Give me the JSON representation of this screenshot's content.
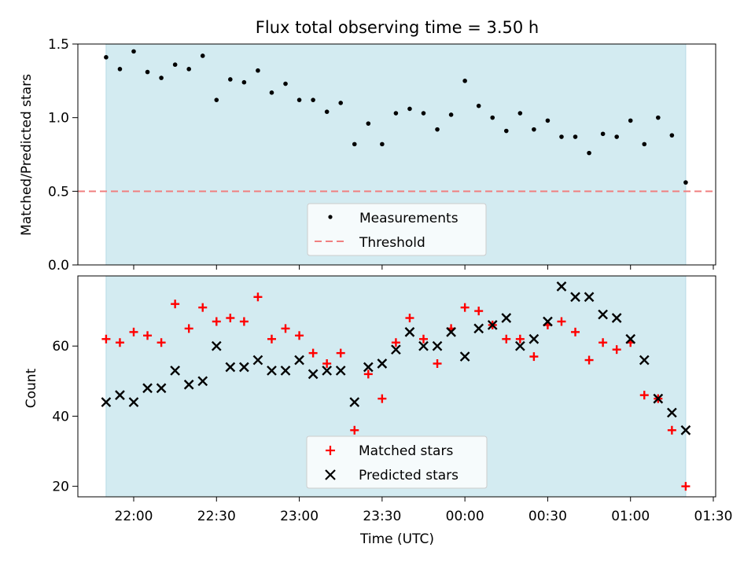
{
  "chart_data": [
    {
      "type": "scatter",
      "title": "Flux total observing time = 3.50 h",
      "ylabel": "Matched/Predicted stars",
      "xlabel": "",
      "ylim": [
        0,
        1.5
      ],
      "yticks": [
        "0.0",
        "0.5",
        "1.0",
        "1.5"
      ],
      "shaded_region": {
        "x_start": "21:50",
        "x_end": "01:20",
        "color": "#d3ebf1"
      },
      "threshold": {
        "name": "Threshold",
        "value": 0.5,
        "color": "#f08080",
        "style": "dashed"
      },
      "legend": {
        "placement": "lower-center",
        "entries": [
          "Measurements",
          "Threshold"
        ]
      },
      "series": [
        {
          "name": "Measurements",
          "marker": "dot",
          "color": "#000000",
          "x": [
            "21:50",
            "21:55",
            "22:00",
            "22:05",
            "22:10",
            "22:15",
            "22:20",
            "22:25",
            "22:30",
            "22:35",
            "22:40",
            "22:45",
            "22:50",
            "22:55",
            "23:00",
            "23:05",
            "23:10",
            "23:15",
            "23:20",
            "23:25",
            "23:30",
            "23:35",
            "23:40",
            "23:45",
            "23:50",
            "23:55",
            "00:00",
            "00:05",
            "00:10",
            "00:15",
            "00:20",
            "00:25",
            "00:30",
            "00:35",
            "00:40",
            "00:45",
            "00:50",
            "00:55",
            "01:00",
            "01:05",
            "01:10",
            "01:15",
            "01:20"
          ],
          "values": [
            1.41,
            1.33,
            1.45,
            1.31,
            1.27,
            1.36,
            1.33,
            1.42,
            1.12,
            1.26,
            1.24,
            1.32,
            1.17,
            1.23,
            1.12,
            1.12,
            1.04,
            1.1,
            0.82,
            0.96,
            0.82,
            1.03,
            1.06,
            1.03,
            0.92,
            1.02,
            1.25,
            1.08,
            1.0,
            0.91,
            1.03,
            0.92,
            0.98,
            0.87,
            0.87,
            0.76,
            0.89,
            0.87,
            0.98,
            0.82,
            1.0,
            0.88,
            0.56
          ]
        }
      ]
    },
    {
      "type": "scatter",
      "title": "",
      "ylabel": "Count",
      "xlabel": "Time (UTC)",
      "ylim": [
        17,
        80
      ],
      "yticks": [
        "20",
        "40",
        "60"
      ],
      "xticks": [
        "22:00",
        "22:30",
        "23:00",
        "23:30",
        "00:00",
        "00:30",
        "01:00",
        "01:30"
      ],
      "shaded_region": {
        "x_start": "21:50",
        "x_end": "01:20",
        "color": "#d3ebf1"
      },
      "legend": {
        "placement": "lower-center",
        "entries": [
          "Matched stars",
          "Predicted stars"
        ]
      },
      "series": [
        {
          "name": "Matched stars",
          "marker": "plus",
          "color": "#ff0000",
          "x": [
            "21:50",
            "21:55",
            "22:00",
            "22:05",
            "22:10",
            "22:15",
            "22:20",
            "22:25",
            "22:30",
            "22:35",
            "22:40",
            "22:45",
            "22:50",
            "22:55",
            "23:00",
            "23:05",
            "23:10",
            "23:15",
            "23:20",
            "23:25",
            "23:30",
            "23:35",
            "23:40",
            "23:45",
            "23:50",
            "23:55",
            "00:00",
            "00:05",
            "00:10",
            "00:15",
            "00:20",
            "00:25",
            "00:30",
            "00:35",
            "00:40",
            "00:45",
            "00:50",
            "00:55",
            "01:00",
            "01:05",
            "01:10",
            "01:15",
            "01:20"
          ],
          "values": [
            62,
            61,
            64,
            63,
            61,
            72,
            65,
            71,
            67,
            68,
            67,
            74,
            62,
            65,
            63,
            58,
            55,
            58,
            36,
            52,
            45,
            61,
            68,
            62,
            55,
            65,
            71,
            70,
            66,
            62,
            62,
            57,
            66,
            67,
            64,
            56,
            61,
            59,
            61,
            46,
            45,
            36,
            20
          ]
        },
        {
          "name": "Predicted stars",
          "marker": "x",
          "color": "#000000",
          "x": [
            "21:50",
            "21:55",
            "22:00",
            "22:05",
            "22:10",
            "22:15",
            "22:20",
            "22:25",
            "22:30",
            "22:35",
            "22:40",
            "22:45",
            "22:50",
            "22:55",
            "23:00",
            "23:05",
            "23:10",
            "23:15",
            "23:20",
            "23:25",
            "23:30",
            "23:35",
            "23:40",
            "23:45",
            "23:50",
            "23:55",
            "00:00",
            "00:05",
            "00:10",
            "00:15",
            "00:20",
            "00:25",
            "00:30",
            "00:35",
            "00:40",
            "00:45",
            "00:50",
            "00:55",
            "01:00",
            "01:05",
            "01:10",
            "01:15",
            "01:20"
          ],
          "values": [
            44,
            46,
            44,
            48,
            48,
            53,
            49,
            50,
            60,
            54,
            54,
            56,
            53,
            53,
            56,
            52,
            53,
            53,
            44,
            54,
            55,
            59,
            64,
            60,
            60,
            64,
            57,
            65,
            66,
            68,
            60,
            62,
            67,
            77,
            74,
            74,
            69,
            68,
            62,
            56,
            45,
            41,
            36
          ]
        }
      ]
    }
  ]
}
